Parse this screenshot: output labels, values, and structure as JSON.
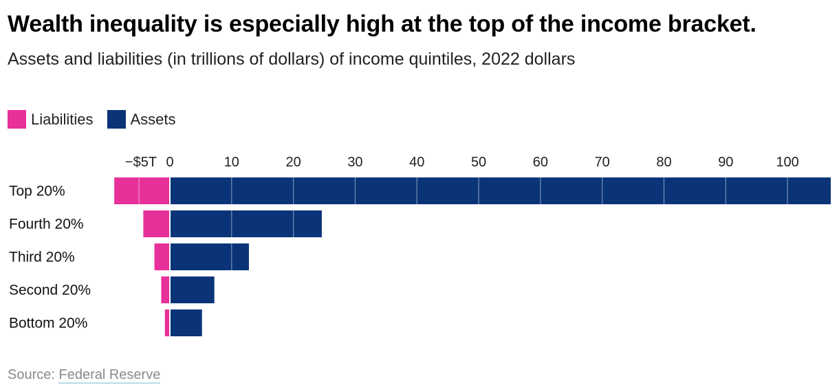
{
  "title": "Wealth inequality is especially high at the top of the income bracket.",
  "subtitle": "Assets and liabilities (in trillions of dollars) of income quintiles, 2022 dollars",
  "legend": {
    "items": [
      {
        "label": "Liabilities",
        "color": "#e8309a"
      },
      {
        "label": "Assets",
        "color": "#0b3478"
      }
    ]
  },
  "source": {
    "prefix": "Source: ",
    "link_text": "Federal Reserve"
  },
  "chart_data": {
    "type": "bar",
    "orientation": "horizontal",
    "stacked": "diverging",
    "categories": [
      "Top 20%",
      "Fourth 20%",
      "Third 20%",
      "Second 20%",
      "Bottom 20%"
    ],
    "series": [
      {
        "name": "Liabilities",
        "color": "#e8309a",
        "values": [
          -9.0,
          -4.3,
          -2.5,
          -1.4,
          -0.8
        ]
      },
      {
        "name": "Assets",
        "color": "#0b3478",
        "values": [
          107.0,
          24.6,
          12.8,
          7.2,
          5.2
        ]
      }
    ],
    "xlim": [
      -9.0,
      107.0
    ],
    "x_ticks": [
      {
        "value": -5,
        "label": "−$5T"
      },
      {
        "value": 0,
        "label": "0"
      },
      {
        "value": 10,
        "label": "10"
      },
      {
        "value": 20,
        "label": "20"
      },
      {
        "value": 30,
        "label": "30"
      },
      {
        "value": 40,
        "label": "40"
      },
      {
        "value": 50,
        "label": "50"
      },
      {
        "value": 60,
        "label": "60"
      },
      {
        "value": 70,
        "label": "70"
      },
      {
        "value": 80,
        "label": "80"
      },
      {
        "value": 90,
        "label": "90"
      },
      {
        "value": 100,
        "label": "100"
      }
    ],
    "x_axis_position": "top",
    "grid": true,
    "legend_position": "top-left"
  }
}
